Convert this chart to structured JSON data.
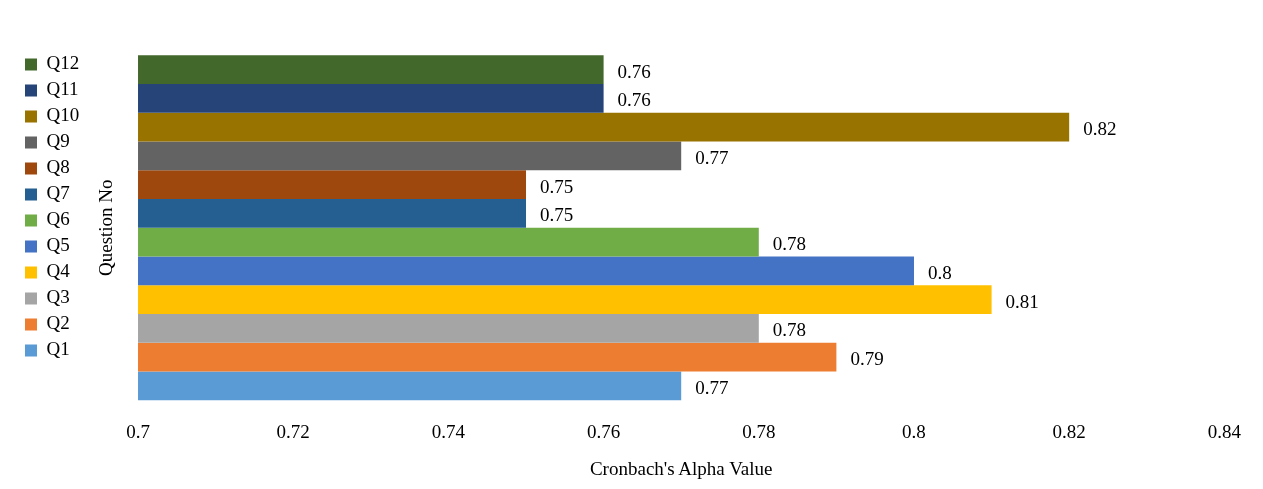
{
  "chart_data": {
    "type": "bar",
    "orientation": "horizontal",
    "xlabel": "Cronbach's Alpha Value",
    "ylabel": "Question No",
    "categories": [
      null
    ],
    "series": [
      {
        "name": "Q12",
        "color": "#43682b",
        "values": [
          0.76
        ]
      },
      {
        "name": "Q11",
        "color": "#264478",
        "values": [
          0.76
        ]
      },
      {
        "name": "Q10",
        "color": "#997300",
        "values": [
          0.82
        ]
      },
      {
        "name": "Q9",
        "color": "#636363",
        "values": [
          0.77
        ]
      },
      {
        "name": "Q8",
        "color": "#9e480e",
        "values": [
          0.75
        ]
      },
      {
        "name": "Q7",
        "color": "#255e91",
        "values": [
          0.75
        ]
      },
      {
        "name": "Q6",
        "color": "#70ad47",
        "values": [
          0.78
        ]
      },
      {
        "name": "Q5",
        "color": "#4472c4",
        "values": [
          0.8
        ]
      },
      {
        "name": "Q4",
        "color": "#ffc000",
        "values": [
          0.81
        ]
      },
      {
        "name": "Q3",
        "color": "#a5a5a5",
        "values": [
          0.78
        ]
      },
      {
        "name": "Q2",
        "color": "#ed7d31",
        "values": [
          0.79
        ]
      },
      {
        "name": "Q1",
        "color": "#5b9bd5",
        "values": [
          0.77
        ]
      }
    ],
    "xlim": [
      0.7,
      0.84
    ],
    "xticks": [
      0.7,
      0.72,
      0.74,
      0.76,
      0.78,
      0.8,
      0.82,
      0.84
    ],
    "data_labels": true,
    "legend": "left",
    "grid": false
  }
}
